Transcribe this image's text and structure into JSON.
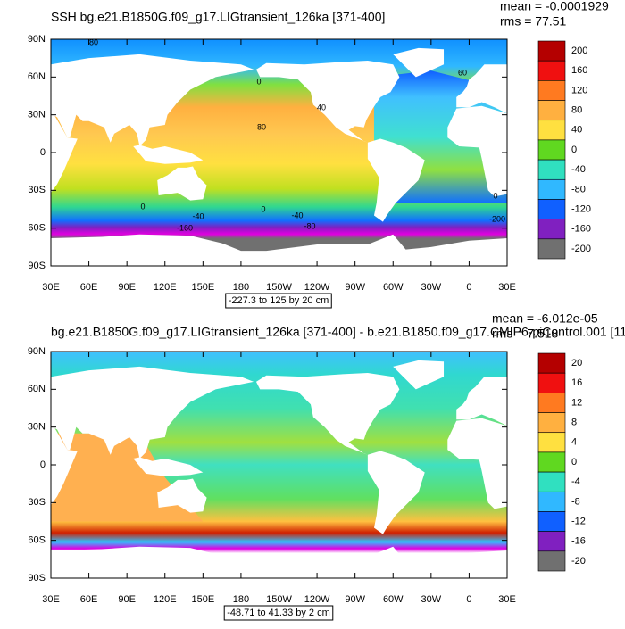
{
  "axes": {
    "lat_labels": [
      "90N",
      "60N",
      "30N",
      "0",
      "30S",
      "60S",
      "90S"
    ],
    "lon_labels": [
      "30E",
      "60E",
      "90E",
      "120E",
      "150E",
      "180",
      "150W",
      "120W",
      "90W",
      "60W",
      "30W",
      "0",
      "30E"
    ]
  },
  "panels": [
    {
      "title": "SSH bg.e21.B1850G.f09_g17.LIGtransient_126ka [371-400]",
      "mean": "mean = -0.0001929",
      "rms": "rms = 77.51",
      "contour_info": "-227.3 to 125 by 20 cm",
      "colorbar_labels": [
        "200",
        "160",
        "120",
        "80",
        "40",
        "0",
        "-40",
        "-80",
        "-120",
        "-160",
        "-200"
      ],
      "contour_labels": [
        "80",
        "0",
        "40",
        "80",
        "60",
        "0",
        "0",
        "-40",
        "-40",
        "-160",
        "-80",
        "-200",
        "0"
      ]
    },
    {
      "title": "bg.e21.B1850G.f09_g17.LIGtransient_126ka [371-400] - b.e21.B1850.f09_g17.CMIP6-piControl.001 [11",
      "mean": "mean = -6.012e-05",
      "rms": "rms = 7.518",
      "contour_info": "-48.71 to 41.33 by 2 cm",
      "colorbar_labels": [
        "20",
        "16",
        "12",
        "8",
        "4",
        "0",
        "-4",
        "-8",
        "-12",
        "-16",
        "-20"
      ],
      "contour_labels": []
    }
  ]
}
